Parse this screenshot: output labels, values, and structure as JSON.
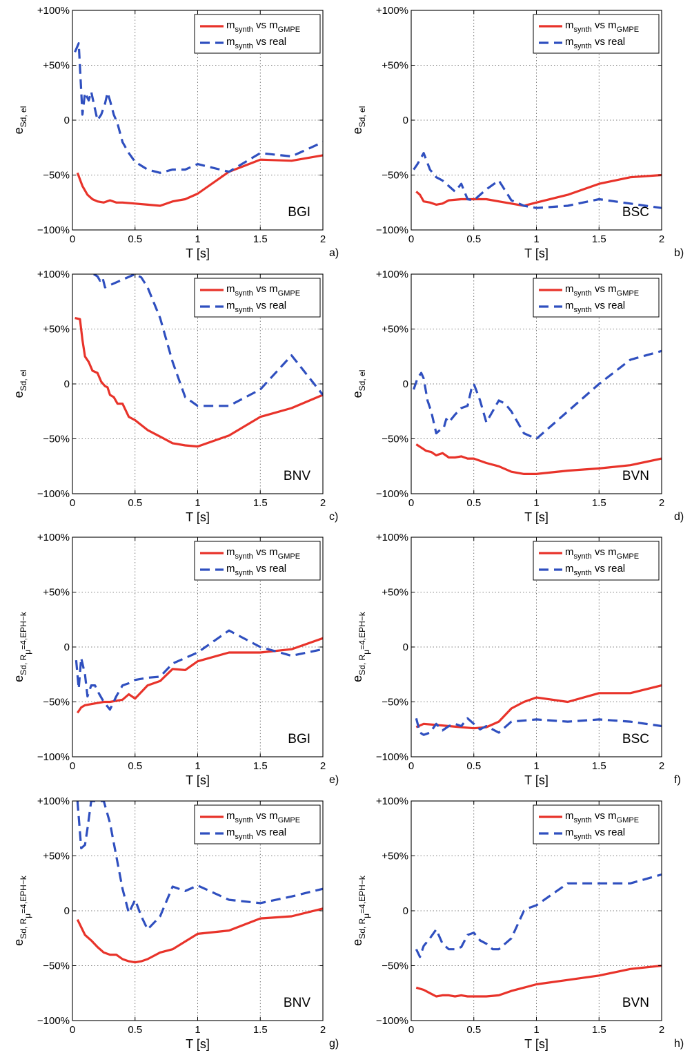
{
  "figure": {
    "legend_entries": [
      {
        "main": "m",
        "sub": "synth",
        "mid": " vs m",
        "sub2": "GMPE",
        "style": "solid",
        "color": "#e8332a"
      },
      {
        "main": "m",
        "sub": "synth",
        "mid": " vs real",
        "sub2": "",
        "style": "dashed",
        "color": "#2f4fbf"
      }
    ],
    "xlabel": "T [s]",
    "xticks": [
      0,
      0.5,
      1,
      1.5,
      2
    ],
    "xtick_labels": [
      "0",
      "0.5",
      "1",
      "1.5",
      "2"
    ],
    "yticks": [
      -100,
      -50,
      0,
      50,
      100
    ],
    "ytick_labels": [
      "−100%",
      "−50%",
      "0",
      "+50%",
      "+100%"
    ],
    "ylabel_el": {
      "main": "e",
      "sub": "Sd, el"
    },
    "ylabel_eph": {
      "main": "e",
      "sub": "Sd, R",
      "sub_mu": "μ",
      "sub_rest": "=4,EPH−k"
    }
  },
  "chart_data": [
    {
      "type": "line",
      "panel": "a)",
      "station": "BGI",
      "ylabel_kind": "el",
      "xlim": [
        0,
        2
      ],
      "ylim": [
        -100,
        100
      ],
      "grid": true,
      "legend": "top-right",
      "series": [
        {
          "name": "m_synth vs m_GMPE",
          "x": [
            0.04,
            0.08,
            0.12,
            0.16,
            0.2,
            0.25,
            0.3,
            0.35,
            0.4,
            0.5,
            0.6,
            0.7,
            0.8,
            0.9,
            1.0,
            1.25,
            1.5,
            1.75,
            2.0
          ],
          "y": [
            -48,
            -60,
            -68,
            -72,
            -74,
            -75,
            -73,
            -75,
            -75,
            -76,
            -77,
            -78,
            -74,
            -72,
            -67,
            -47,
            -36,
            -37,
            -32
          ]
        },
        {
          "name": "m_synth vs real",
          "x": [
            0.02,
            0.05,
            0.08,
            0.1,
            0.13,
            0.15,
            0.18,
            0.2,
            0.23,
            0.26,
            0.28,
            0.3,
            0.33,
            0.36,
            0.4,
            0.45,
            0.5,
            0.6,
            0.7,
            0.8,
            0.9,
            1.0,
            1.25,
            1.5,
            1.75,
            2.0
          ],
          "y": [
            62,
            70,
            5,
            25,
            18,
            26,
            10,
            0,
            5,
            15,
            25,
            18,
            5,
            -3,
            -20,
            -30,
            -38,
            -45,
            -48,
            -45,
            -45,
            -40,
            -47,
            -30,
            -33,
            -20
          ]
        }
      ]
    },
    {
      "type": "line",
      "panel": "b)",
      "station": "BSC",
      "ylabel_kind": "el",
      "xlim": [
        0,
        2
      ],
      "ylim": [
        -100,
        100
      ],
      "grid": true,
      "legend": "top-right",
      "series": [
        {
          "name": "m_synth vs m_GMPE",
          "x": [
            0.04,
            0.07,
            0.1,
            0.15,
            0.2,
            0.25,
            0.3,
            0.4,
            0.5,
            0.6,
            0.7,
            0.8,
            0.9,
            1.0,
            1.25,
            1.5,
            1.75,
            2.0
          ],
          "y": [
            -65,
            -68,
            -74,
            -75,
            -77,
            -76,
            -73,
            -72,
            -72,
            -72,
            -74,
            -76,
            -78,
            -75,
            -68,
            -58,
            -52,
            -50
          ]
        },
        {
          "name": "m_synth vs real",
          "x": [
            0.02,
            0.05,
            0.1,
            0.15,
            0.2,
            0.25,
            0.3,
            0.35,
            0.4,
            0.45,
            0.5,
            0.6,
            0.7,
            0.8,
            0.9,
            1.0,
            1.25,
            1.5,
            1.75,
            2.0
          ],
          "y": [
            -45,
            -40,
            -30,
            -45,
            -52,
            -55,
            -60,
            -65,
            -58,
            -72,
            -73,
            -63,
            -55,
            -73,
            -78,
            -80,
            -78,
            -72,
            -76,
            -80
          ]
        }
      ]
    },
    {
      "type": "line",
      "panel": "c)",
      "station": "BNV",
      "ylabel_kind": "el",
      "xlim": [
        0,
        2
      ],
      "ylim": [
        -100,
        100
      ],
      "grid": true,
      "legend": "top-right",
      "series": [
        {
          "name": "m_synth vs m_GMPE",
          "x": [
            0.02,
            0.06,
            0.08,
            0.1,
            0.13,
            0.16,
            0.2,
            0.23,
            0.26,
            0.28,
            0.3,
            0.33,
            0.36,
            0.4,
            0.45,
            0.5,
            0.6,
            0.7,
            0.8,
            0.9,
            1.0,
            1.25,
            1.5,
            1.75,
            2.0
          ],
          "y": [
            60,
            59,
            40,
            25,
            20,
            12,
            10,
            2,
            -2,
            -3,
            -10,
            -12,
            -18,
            -18,
            -30,
            -33,
            -42,
            -48,
            -54,
            -56,
            -57,
            -47,
            -30,
            -22,
            -10
          ]
        },
        {
          "name": "m_synth vs real",
          "x": [
            0.17,
            0.2,
            0.22,
            0.24,
            0.26,
            0.5,
            0.55,
            0.6,
            0.7,
            0.8,
            0.9,
            1.0,
            1.25,
            1.5,
            1.75,
            2.0
          ],
          "y": [
            100,
            98,
            94,
            97,
            88,
            100,
            97,
            88,
            60,
            20,
            -12,
            -20,
            -20,
            -5,
            26,
            -10
          ]
        }
      ]
    },
    {
      "type": "line",
      "panel": "d)",
      "station": "BVN",
      "ylabel_kind": "el",
      "xlim": [
        0,
        2
      ],
      "ylim": [
        -100,
        100
      ],
      "grid": true,
      "legend": "top-right",
      "series": [
        {
          "name": "m_synth vs m_GMPE",
          "x": [
            0.04,
            0.08,
            0.12,
            0.16,
            0.2,
            0.25,
            0.3,
            0.35,
            0.4,
            0.45,
            0.5,
            0.6,
            0.7,
            0.8,
            0.9,
            1.0,
            1.25,
            1.5,
            1.75,
            2.0
          ],
          "y": [
            -55,
            -58,
            -61,
            -62,
            -65,
            -63,
            -67,
            -67,
            -66,
            -68,
            -68,
            -72,
            -75,
            -80,
            -82,
            -82,
            -79,
            -77,
            -74,
            -68
          ]
        },
        {
          "name": "m_synth vs real",
          "x": [
            0.02,
            0.05,
            0.08,
            0.1,
            0.13,
            0.16,
            0.2,
            0.23,
            0.26,
            0.28,
            0.3,
            0.35,
            0.4,
            0.45,
            0.48,
            0.5,
            0.55,
            0.6,
            0.65,
            0.7,
            0.75,
            0.8,
            0.9,
            1.0,
            1.25,
            1.5,
            1.75,
            2.0
          ],
          "y": [
            -5,
            5,
            10,
            5,
            -15,
            -25,
            -45,
            -42,
            -40,
            -32,
            -35,
            -28,
            -22,
            -20,
            -5,
            0,
            -15,
            -35,
            -25,
            -15,
            -18,
            -25,
            -45,
            -50,
            -25,
            0,
            22,
            30
          ]
        }
      ]
    },
    {
      "type": "line",
      "panel": "e)",
      "station": "BGI",
      "ylabel_kind": "eph",
      "xlim": [
        0,
        2
      ],
      "ylim": [
        -100,
        100
      ],
      "grid": true,
      "legend": "top-right",
      "series": [
        {
          "name": "m_synth vs m_GMPE",
          "x": [
            0.04,
            0.07,
            0.1,
            0.15,
            0.2,
            0.25,
            0.3,
            0.35,
            0.4,
            0.45,
            0.5,
            0.6,
            0.7,
            0.8,
            0.9,
            1.0,
            1.25,
            1.5,
            1.75,
            2.0
          ],
          "y": [
            -60,
            -55,
            -53,
            -52,
            -51,
            -50,
            -50,
            -49,
            -48,
            -43,
            -47,
            -35,
            -31,
            -20,
            -21,
            -13,
            -5,
            -5,
            -2,
            8
          ]
        },
        {
          "name": "m_synth vs real",
          "x": [
            0.03,
            0.05,
            0.07,
            0.1,
            0.12,
            0.15,
            0.18,
            0.2,
            0.25,
            0.3,
            0.35,
            0.4,
            0.45,
            0.5,
            0.6,
            0.7,
            0.8,
            0.9,
            1.0,
            1.25,
            1.5,
            1.75,
            2.0
          ],
          "y": [
            -12,
            -38,
            -10,
            -25,
            -45,
            -35,
            -35,
            -40,
            -50,
            -57,
            -45,
            -35,
            -33,
            -30,
            -28,
            -27,
            -15,
            -10,
            -5,
            15,
            0,
            -8,
            -2
          ]
        }
      ]
    },
    {
      "type": "line",
      "panel": "f)",
      "station": "BSC",
      "ylabel_kind": "eph",
      "xlim": [
        0,
        2
      ],
      "ylim": [
        -100,
        100
      ],
      "grid": true,
      "legend": "top-right",
      "series": [
        {
          "name": "m_synth vs m_GMPE",
          "x": [
            0.04,
            0.1,
            0.2,
            0.3,
            0.4,
            0.5,
            0.6,
            0.7,
            0.8,
            0.9,
            1.0,
            1.25,
            1.5,
            1.75,
            2.0
          ],
          "y": [
            -73,
            -70,
            -71,
            -72,
            -73,
            -74,
            -73,
            -68,
            -56,
            -50,
            -46,
            -50,
            -42,
            -42,
            -35
          ]
        },
        {
          "name": "m_synth vs real",
          "x": [
            0.04,
            0.07,
            0.1,
            0.15,
            0.2,
            0.25,
            0.3,
            0.35,
            0.4,
            0.45,
            0.5,
            0.55,
            0.6,
            0.7,
            0.8,
            1.0,
            1.25,
            1.5,
            1.75,
            2.0
          ],
          "y": [
            -65,
            -78,
            -80,
            -78,
            -70,
            -76,
            -72,
            -70,
            -72,
            -65,
            -70,
            -75,
            -72,
            -78,
            -68,
            -66,
            -68,
            -66,
            -68,
            -72
          ]
        }
      ]
    },
    {
      "type": "line",
      "panel": "g)",
      "station": "BNV",
      "ylabel_kind": "eph",
      "xlim": [
        0,
        2
      ],
      "ylim": [
        -100,
        100
      ],
      "grid": true,
      "legend": "top-right",
      "series": [
        {
          "name": "m_synth vs m_GMPE",
          "x": [
            0.04,
            0.1,
            0.15,
            0.2,
            0.25,
            0.3,
            0.35,
            0.4,
            0.45,
            0.5,
            0.55,
            0.6,
            0.7,
            0.8,
            0.9,
            1.0,
            1.25,
            1.5,
            1.75,
            2.0
          ],
          "y": [
            -8,
            -22,
            -27,
            -33,
            -38,
            -40,
            -40,
            -44,
            -46,
            -47,
            -46,
            -44,
            -38,
            -35,
            -28,
            -21,
            -18,
            -7,
            -5,
            2
          ]
        },
        {
          "name": "m_synth vs real",
          "x": [
            0.04,
            0.07,
            0.1,
            0.12,
            0.15,
            0.2,
            0.25,
            0.3,
            0.35,
            0.4,
            0.45,
            0.5,
            0.55,
            0.6,
            0.7,
            0.8,
            0.9,
            1.0,
            1.25,
            1.5,
            1.75,
            2.0
          ],
          "y": [
            100,
            57,
            60,
            75,
            100,
            100,
            100,
            80,
            50,
            20,
            -2,
            10,
            -5,
            -17,
            -5,
            22,
            18,
            23,
            10,
            7,
            13,
            20
          ]
        }
      ]
    },
    {
      "type": "line",
      "panel": "h)",
      "station": "BVN",
      "ylabel_kind": "eph",
      "xlim": [
        0,
        2
      ],
      "ylim": [
        -100,
        100
      ],
      "grid": true,
      "legend": "top-right",
      "series": [
        {
          "name": "m_synth vs m_GMPE",
          "x": [
            0.04,
            0.1,
            0.15,
            0.2,
            0.25,
            0.3,
            0.35,
            0.4,
            0.45,
            0.5,
            0.6,
            0.7,
            0.8,
            0.9,
            1.0,
            1.25,
            1.5,
            1.75,
            2.0
          ],
          "y": [
            -70,
            -72,
            -75,
            -78,
            -77,
            -77,
            -78,
            -77,
            -78,
            -78,
            -78,
            -77,
            -73,
            -70,
            -67,
            -63,
            -59,
            -53,
            -50
          ]
        },
        {
          "name": "m_synth vs real",
          "x": [
            0.04,
            0.07,
            0.1,
            0.15,
            0.2,
            0.25,
            0.3,
            0.35,
            0.4,
            0.45,
            0.5,
            0.55,
            0.6,
            0.65,
            0.7,
            0.75,
            0.8,
            0.9,
            0.95,
            1.0,
            1.25,
            1.5,
            1.75,
            2.0
          ],
          "y": [
            -35,
            -42,
            -32,
            -25,
            -17,
            -30,
            -35,
            -35,
            -33,
            -22,
            -20,
            -27,
            -30,
            -35,
            -35,
            -30,
            -25,
            0,
            3,
            5,
            25,
            25,
            25,
            33
          ]
        }
      ]
    }
  ]
}
